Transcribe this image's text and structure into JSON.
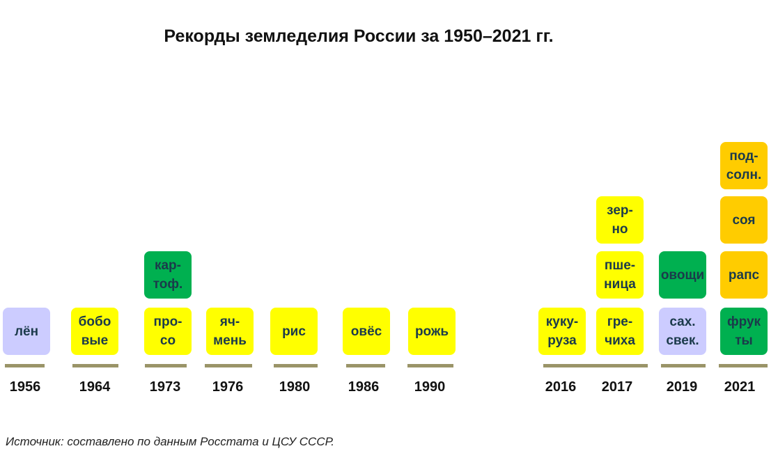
{
  "title": "Рекорды земледелия России за 1950–2021 гг.",
  "source": "Источник: составлено по данным Росстата и ЦСУ СССР.",
  "colors": {
    "yellow": "#ffff00",
    "amber": "#ffcc00",
    "green": "#00b050",
    "lavender": "#ccccff",
    "bar": "#9a9468",
    "text": "#1b3a4b"
  },
  "timeline": [
    {
      "year": "1956",
      "records": [
        "лён"
      ]
    },
    {
      "year": "1964",
      "records": [
        "бобо\nвые"
      ]
    },
    {
      "year": "1973",
      "records": [
        "про-\nсо",
        "кар-\nтоф."
      ]
    },
    {
      "year": "1976",
      "records": [
        "яч-\nмень"
      ]
    },
    {
      "year": "1980",
      "records": [
        "рис"
      ]
    },
    {
      "year": "1986",
      "records": [
        "овёс"
      ]
    },
    {
      "year": "1990",
      "records": [
        "рожь"
      ]
    },
    {
      "year": "2016",
      "records": [
        "куку-\nруза"
      ]
    },
    {
      "year": "2017",
      "records": [
        "гре-\nчиха",
        "пше-\nница",
        "зер-\nно"
      ]
    },
    {
      "year": "2019",
      "records": [
        "сах.\nсвек.",
        "овощи"
      ]
    },
    {
      "year": "2021",
      "records": [
        "фрук\nты",
        "рапс",
        "соя",
        "под-\nсолн."
      ]
    }
  ]
}
